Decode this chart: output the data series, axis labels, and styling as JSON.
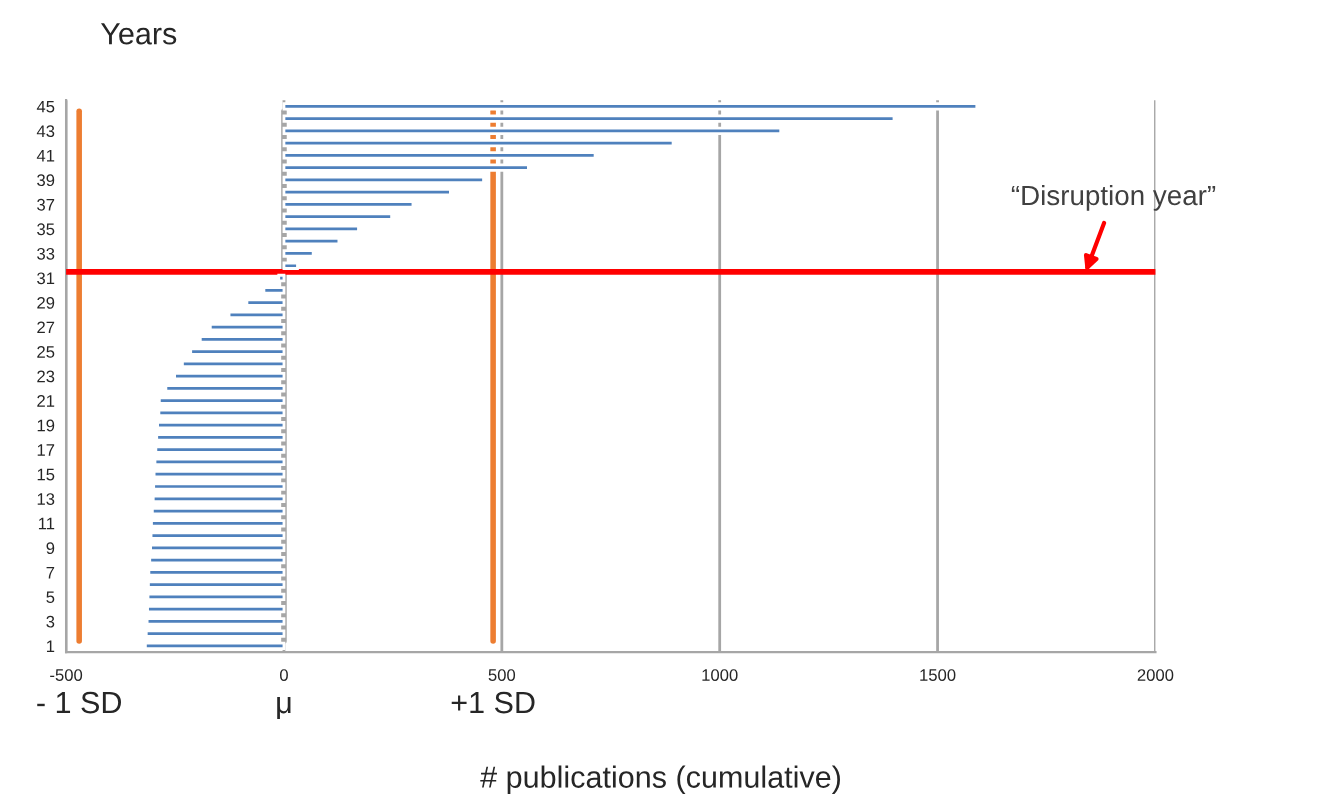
{
  "chart_data": {
    "type": "bar",
    "orientation": "horizontal",
    "ylabel": "Years",
    "xlabel": "# publications (cumulative)",
    "x": [
      45,
      44,
      43,
      42,
      41,
      40,
      39,
      38,
      37,
      36,
      35,
      34,
      33,
      32,
      31,
      30,
      29,
      28,
      27,
      26,
      25,
      24,
      23,
      22,
      21,
      20,
      19,
      18,
      17,
      16,
      15,
      14,
      13,
      12,
      11,
      10,
      9,
      8,
      7,
      6,
      5,
      4,
      3,
      2,
      1
    ],
    "values": [
      1590,
      1400,
      1140,
      893,
      714,
      561,
      458,
      382,
      296,
      247,
      171,
      126,
      67,
      31,
      -12,
      -46,
      -85,
      -126,
      -169,
      -192,
      -214,
      -233,
      -251,
      -271,
      -286,
      -287,
      -290,
      -292,
      -294,
      -296,
      -298,
      -299,
      -300,
      -302,
      -304,
      -305,
      -306,
      -308,
      -310,
      -311,
      -312,
      -313,
      -314,
      -316,
      -318
    ],
    "color": "#4f81bd",
    "xlim": [
      -500,
      2000
    ],
    "xticks": [
      -500,
      0,
      500,
      1000,
      1500,
      2000
    ],
    "ylim": [
      0.5,
      45.5
    ],
    "yticks": [
      1,
      3,
      5,
      7,
      9,
      11,
      13,
      15,
      17,
      19,
      21,
      23,
      25,
      27,
      29,
      31,
      33,
      35,
      37,
      39,
      41,
      43,
      45
    ],
    "grid": "x",
    "ref_lines": [
      {
        "axis": "x",
        "value": -470,
        "label": "- 1 SD",
        "color": "#ed7d31"
      },
      {
        "axis": "x",
        "value": 0,
        "label": "μ",
        "color": "#a6a6a6"
      },
      {
        "axis": "x",
        "value": 480,
        "label": "+1 SD",
        "color": "#ed7d31"
      },
      {
        "axis": "y",
        "value": 31.5,
        "label": null,
        "color": "#ff0000"
      }
    ],
    "annotations": [
      {
        "text": "“Disruption year”",
        "x": 1840,
        "y": 31.5
      }
    ]
  }
}
